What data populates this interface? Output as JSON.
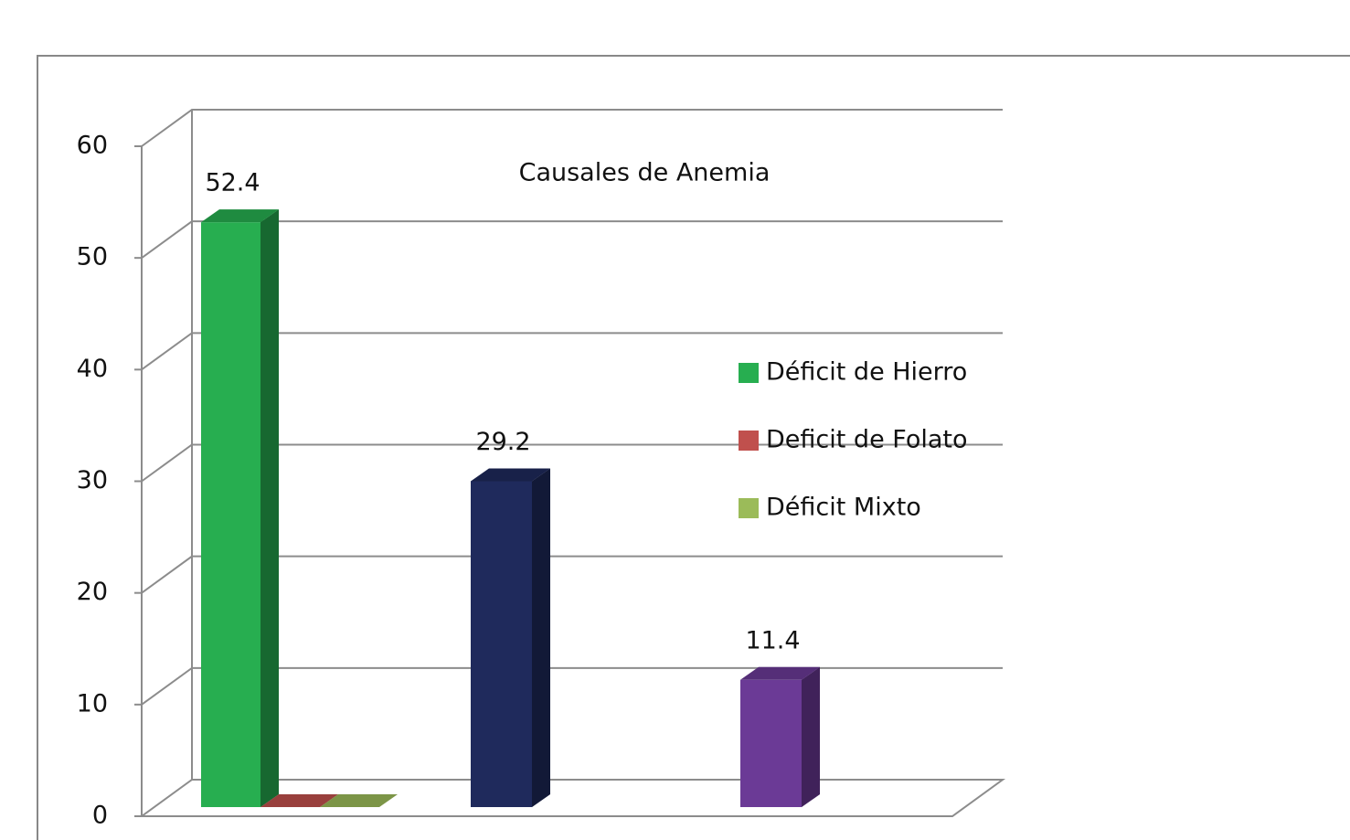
{
  "chart_data": {
    "type": "bar3d",
    "title": "Causales de Anemia",
    "series": [
      {
        "name": "Déficit de Hierro",
        "color": "#27ae50",
        "values": [
          52.4
        ]
      },
      {
        "name": "Deficit de Folato",
        "color": "#c0504d",
        "values": [
          0
        ]
      },
      {
        "name": "Déficit Mixto",
        "color": "#9bbb59",
        "values": [
          0
        ]
      }
    ],
    "other_bars": [
      {
        "color": "#1f2a5c",
        "value": 29.2
      },
      {
        "color": "#6b3a96",
        "value": 11.4
      }
    ],
    "ylim": [
      0,
      60
    ],
    "yticks": [
      0,
      10,
      20,
      30,
      40,
      50,
      60
    ],
    "grid": true
  }
}
